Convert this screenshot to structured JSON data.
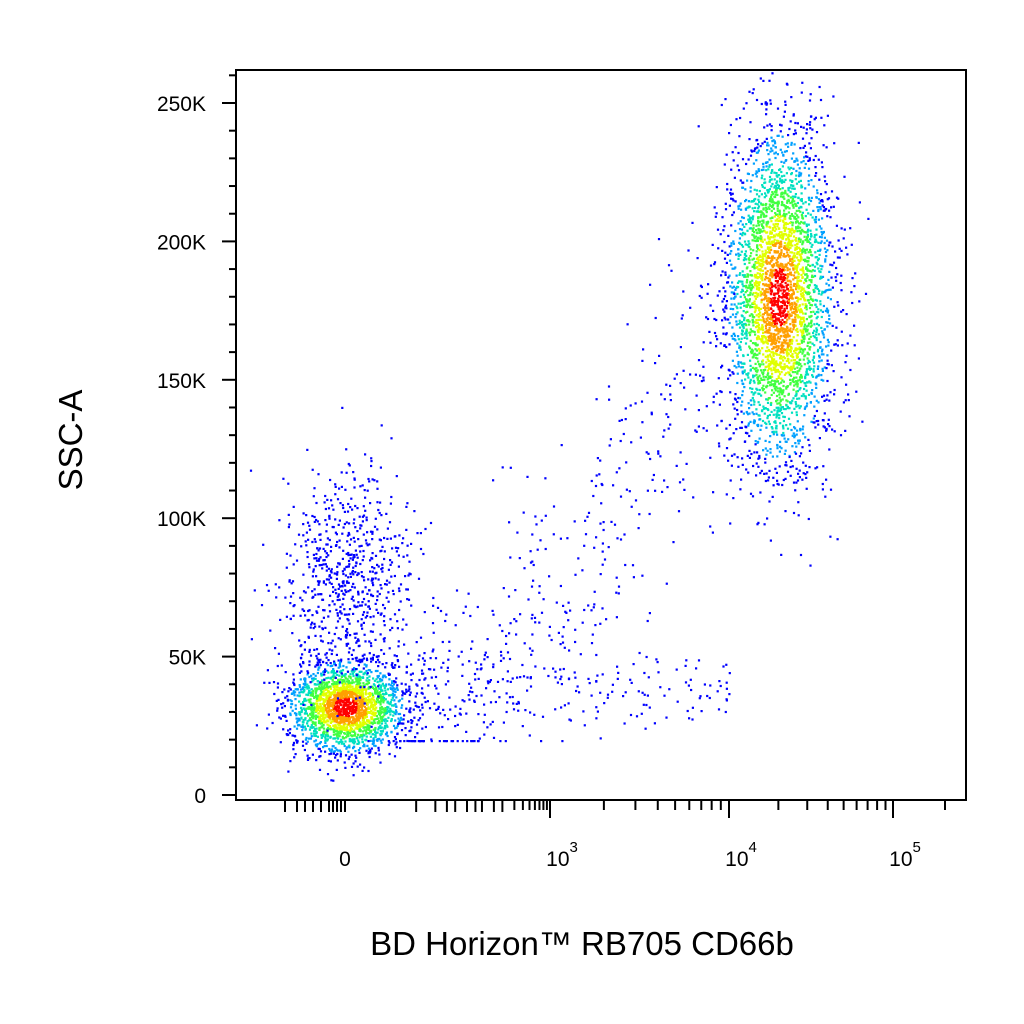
{
  "chart_data": {
    "type": "scatter",
    "style": "density-dot-plot",
    "xlabel": "BD Horizon™ RB705 CD66b",
    "ylabel": "SSC-A",
    "x_scale": "biexponential",
    "y_scale": "linear",
    "xlim": [
      -200,
      100000
    ],
    "ylim": [
      0,
      262144
    ],
    "x_ticks": [
      {
        "value": 0,
        "label": "0"
      },
      {
        "value": 1000,
        "label": "10",
        "exponent": "3"
      },
      {
        "value": 10000,
        "label": "10",
        "exponent": "4"
      },
      {
        "value": 100000,
        "label": "10",
        "exponent": "5"
      }
    ],
    "y_ticks": [
      {
        "value": 0,
        "label": "0"
      },
      {
        "value": 50000,
        "label": "50K"
      },
      {
        "value": 100000,
        "label": "100K"
      },
      {
        "value": 150000,
        "label": "150K"
      },
      {
        "value": 200000,
        "label": "200K"
      },
      {
        "value": 250000,
        "label": "250K"
      }
    ],
    "populations": [
      {
        "center_x": 0,
        "center_y": 32000,
        "sd_y": 9000,
        "count": 2200,
        "density": "high"
      },
      {
        "center_x": 0,
        "center_y": 80000,
        "sd_y": 18000,
        "count": 700,
        "density": "low"
      },
      {
        "center_x": 20000,
        "center_y": 180000,
        "sd_y": 30000,
        "count": 3500,
        "density": "high"
      },
      {
        "center_x": 1000,
        "center_y": 60000,
        "sd_y": 40000,
        "count": 450,
        "density": "scattered"
      }
    ],
    "colormap": [
      "#0000ff",
      "#00a0ff",
      "#00e0c0",
      "#40ff40",
      "#e0ff00",
      "#ffa000",
      "#ff0000"
    ],
    "grid": false,
    "legend": "none"
  }
}
